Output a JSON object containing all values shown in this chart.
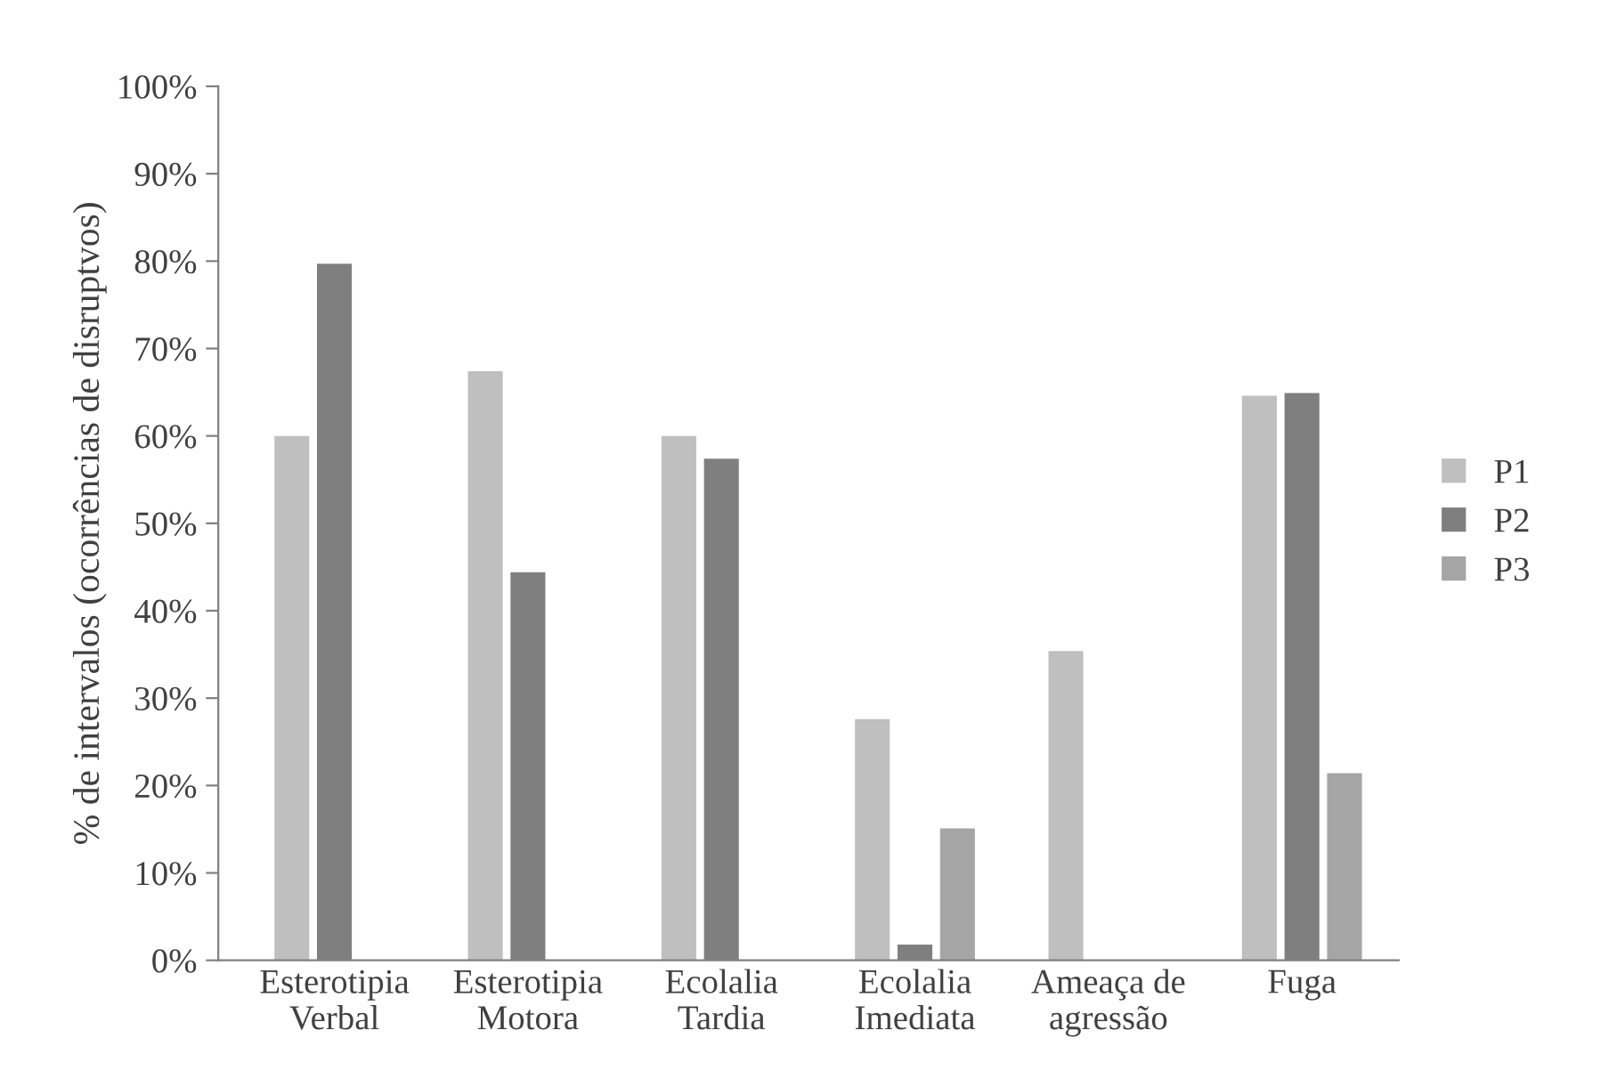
{
  "chart_data": {
    "type": "bar",
    "ylabel": "% de intervalos (ocorrências de disruptvos)",
    "categories": [
      "Esterotipia\nVerbal",
      "Esterotipia\nMotora",
      "Ecolalia\nTardia",
      "Ecolalia\nImediata",
      "Ameaça de\nagressão",
      "Fuga"
    ],
    "series": [
      {
        "name": "P1",
        "color": "#bfbfbf",
        "values": [
          60,
          67.4,
          60,
          27.6,
          35.4,
          64.6
        ]
      },
      {
        "name": "P2",
        "color": "#7f7f7f",
        "values": [
          79.7,
          44.4,
          57.4,
          1.8,
          null,
          64.9
        ]
      },
      {
        "name": "P3",
        "color": "#a5a5a5",
        "values": [
          null,
          null,
          null,
          15.1,
          null,
          21.4
        ]
      }
    ],
    "ylim": [
      0,
      100
    ],
    "yticks": [
      {
        "value": 0,
        "label": "0%"
      },
      {
        "value": 10,
        "label": "10%"
      },
      {
        "value": 20,
        "label": "20%"
      },
      {
        "value": 30,
        "label": "30%"
      },
      {
        "value": 40,
        "label": "40%"
      },
      {
        "value": 50,
        "label": "50%"
      },
      {
        "value": 60,
        "label": "60%"
      },
      {
        "value": 70,
        "label": "70%"
      },
      {
        "value": 80,
        "label": "80%"
      },
      {
        "value": 90,
        "label": "90%"
      },
      {
        "value": 100,
        "label": "100%"
      }
    ],
    "grid": false,
    "legend": "right"
  }
}
